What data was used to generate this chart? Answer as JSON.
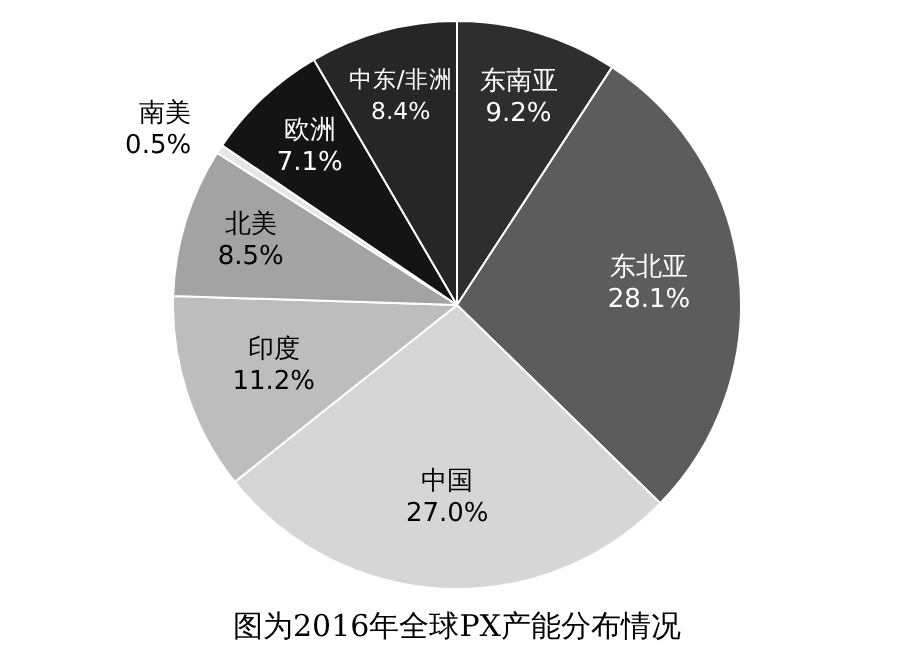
{
  "chart_data": {
    "type": "pie",
    "categories": [
      "东南亚",
      "东北亚",
      "中国",
      "印度",
      "北美",
      "南美",
      "欧洲",
      "中东/非洲"
    ],
    "values": [
      9.2,
      28.1,
      27.0,
      11.2,
      8.5,
      0.5,
      7.1,
      8.4
    ],
    "value_labels": [
      "9.2%",
      "28.1%",
      "27.0%",
      "11.2%",
      "8.5%",
      "0.5%",
      "7.1%",
      "8.4%"
    ],
    "colors": [
      "#2e2e2e",
      "#5c5c5c",
      "#d6d6d6",
      "#bdbdbd",
      "#a3a3a3",
      "#e6e6e6",
      "#141414",
      "#262626"
    ],
    "legend": false,
    "annotations": [
      "图为2016年全球PX产能分布情况"
    ]
  }
}
